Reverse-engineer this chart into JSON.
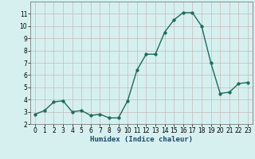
{
  "x": [
    0,
    1,
    2,
    3,
    4,
    5,
    6,
    7,
    8,
    9,
    10,
    11,
    12,
    13,
    14,
    15,
    16,
    17,
    18,
    19,
    20,
    21,
    22,
    23
  ],
  "y": [
    2.8,
    3.1,
    3.8,
    3.9,
    3.0,
    3.1,
    2.7,
    2.8,
    2.5,
    2.5,
    3.9,
    6.4,
    7.7,
    7.7,
    9.5,
    10.5,
    11.1,
    11.1,
    10.0,
    7.0,
    4.5,
    4.6,
    5.3,
    5.4
  ],
  "line_color": "#1a6b5a",
  "marker": "o",
  "markersize": 2.5,
  "linewidth": 1.0,
  "bg_color": "#d6f0f0",
  "grid_color": "#c8b8b8",
  "xlabel": "Humidex (Indice chaleur)",
  "ylabel": "",
  "ylim": [
    2,
    12
  ],
  "xlim": [
    -0.5,
    23.5
  ],
  "yticks": [
    2,
    3,
    4,
    5,
    6,
    7,
    8,
    9,
    10,
    11
  ],
  "xticks": [
    0,
    1,
    2,
    3,
    4,
    5,
    6,
    7,
    8,
    9,
    10,
    11,
    12,
    13,
    14,
    15,
    16,
    17,
    18,
    19,
    20,
    21,
    22,
    23
  ],
  "tick_fontsize": 5.5,
  "xlabel_fontsize": 6.5,
  "xlabel_color": "#1a4a6a"
}
